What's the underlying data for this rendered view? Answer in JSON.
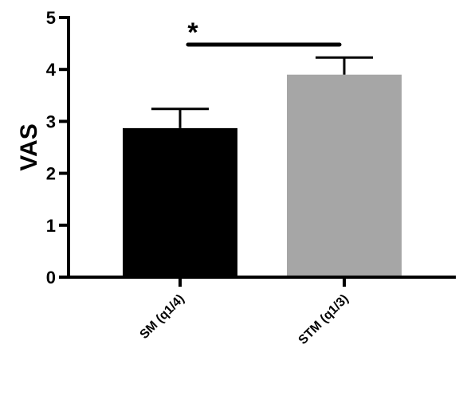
{
  "chart_data": {
    "type": "bar",
    "categories": [
      "SM (q1/4)",
      "STM (q1/3)"
    ],
    "values": [
      2.87,
      3.9
    ],
    "errors": [
      0.37,
      0.33
    ],
    "colors": [
      "#000000",
      "#a6a6a6"
    ],
    "xlabel": "",
    "ylabel": "VAS",
    "ylim": [
      0,
      5
    ],
    "yticks": [
      "0",
      "1",
      "2",
      "3",
      "4",
      "5"
    ],
    "grid": false,
    "legend": "none",
    "annotations": [
      {
        "text": "*",
        "between": [
          "SM (q1/4)",
          "STM (q1/3)"
        ]
      }
    ]
  }
}
